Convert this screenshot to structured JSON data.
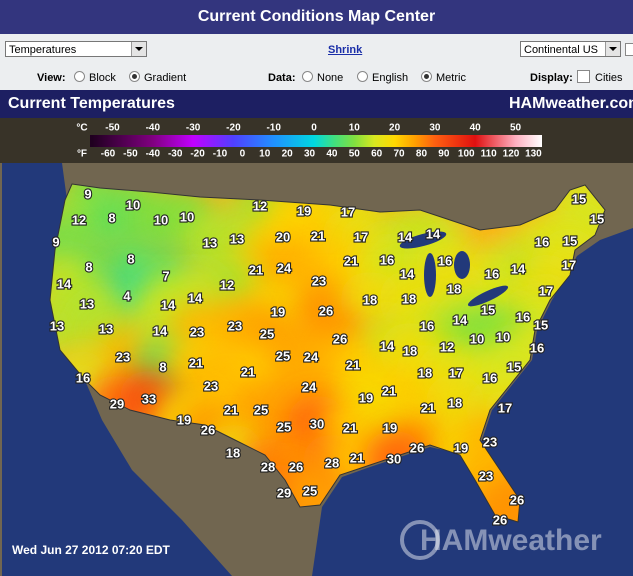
{
  "header": {
    "title": "Current Conditions Map Center"
  },
  "controls": {
    "product": "Temperatures",
    "shrink": "Shrink",
    "region": "Continental US"
  },
  "options": {
    "view_label": "View:",
    "view_block": "Block",
    "view_gradient": "Gradient",
    "data_label": "Data:",
    "data_none": "None",
    "data_english": "English",
    "data_metric": "Metric",
    "display_label": "Display:",
    "display_cities": "Cities"
  },
  "map": {
    "title": "Current Temperatures",
    "brand": "HAMweather.com",
    "scale": {
      "celsius_unit": "°C",
      "fahrenheit_unit": "°F",
      "celsius_ticks": [
        -50,
        -40,
        -30,
        -20,
        -10,
        0,
        10,
        20,
        30,
        40,
        50
      ],
      "fahrenheit_ticks": [
        -60,
        -50,
        -40,
        -30,
        -20,
        -10,
        0,
        10,
        20,
        30,
        40,
        50,
        60,
        70,
        80,
        90,
        100,
        110,
        120,
        130
      ]
    },
    "readings": [
      9,
      10,
      12,
      8,
      10,
      10,
      12,
      19,
      17,
      15,
      15,
      9,
      13,
      13,
      20,
      21,
      17,
      14,
      14,
      16,
      15,
      8,
      8,
      7,
      21,
      24,
      23,
      21,
      16,
      14,
      16,
      16,
      14,
      17,
      14,
      12,
      4,
      14,
      14,
      13,
      19,
      26,
      18,
      18,
      18,
      17,
      15,
      16,
      13,
      13,
      14,
      23,
      23,
      25,
      16,
      14,
      15,
      26,
      14,
      12,
      10,
      10,
      16,
      23,
      25,
      24,
      21,
      18,
      8,
      21,
      21,
      18,
      17,
      16,
      15,
      16,
      23,
      24,
      21,
      19,
      29,
      33,
      21,
      25,
      21,
      18,
      17,
      19,
      26,
      25,
      30,
      21,
      19,
      26,
      19,
      23,
      18,
      28,
      26,
      28,
      21,
      30,
      23,
      29,
      25,
      26,
      26
    ],
    "timestamp": "Wed Jun 27 2012 07:20 EDT",
    "watermark": "HAMweather"
  }
}
